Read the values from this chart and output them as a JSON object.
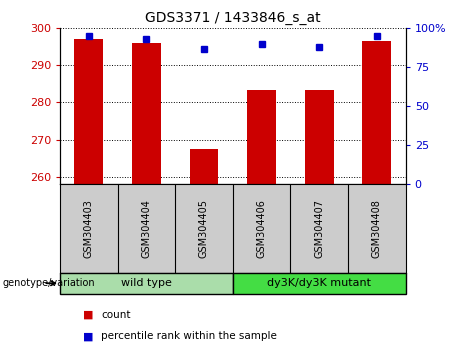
{
  "title": "GDS3371 / 1433846_s_at",
  "samples": [
    "GSM304403",
    "GSM304404",
    "GSM304405",
    "GSM304406",
    "GSM304407",
    "GSM304408"
  ],
  "red_values": [
    297.0,
    296.0,
    267.5,
    283.5,
    283.5,
    296.5
  ],
  "blue_values": [
    95,
    93,
    87,
    90,
    88,
    95
  ],
  "ylim_left": [
    258,
    300
  ],
  "ylim_right": [
    0,
    100
  ],
  "left_ticks": [
    260,
    270,
    280,
    290,
    300
  ],
  "right_ticks": [
    0,
    25,
    50,
    75,
    100
  ],
  "right_tick_labels": [
    "0",
    "25",
    "50",
    "75",
    "100%"
  ],
  "bar_color": "#cc0000",
  "dot_color": "#0000cc",
  "bg_plot": "#ffffff",
  "bg_label": "#cccccc",
  "group1_label": "wild type",
  "group2_label": "dy3K/dy3K mutant",
  "group1_color": "#aaddaa",
  "group2_color": "#44dd44",
  "genotype_label": "genotype/variation",
  "legend_count": "count",
  "legend_pct": "percentile rank within the sample",
  "bar_width": 0.5,
  "baseline": 258
}
